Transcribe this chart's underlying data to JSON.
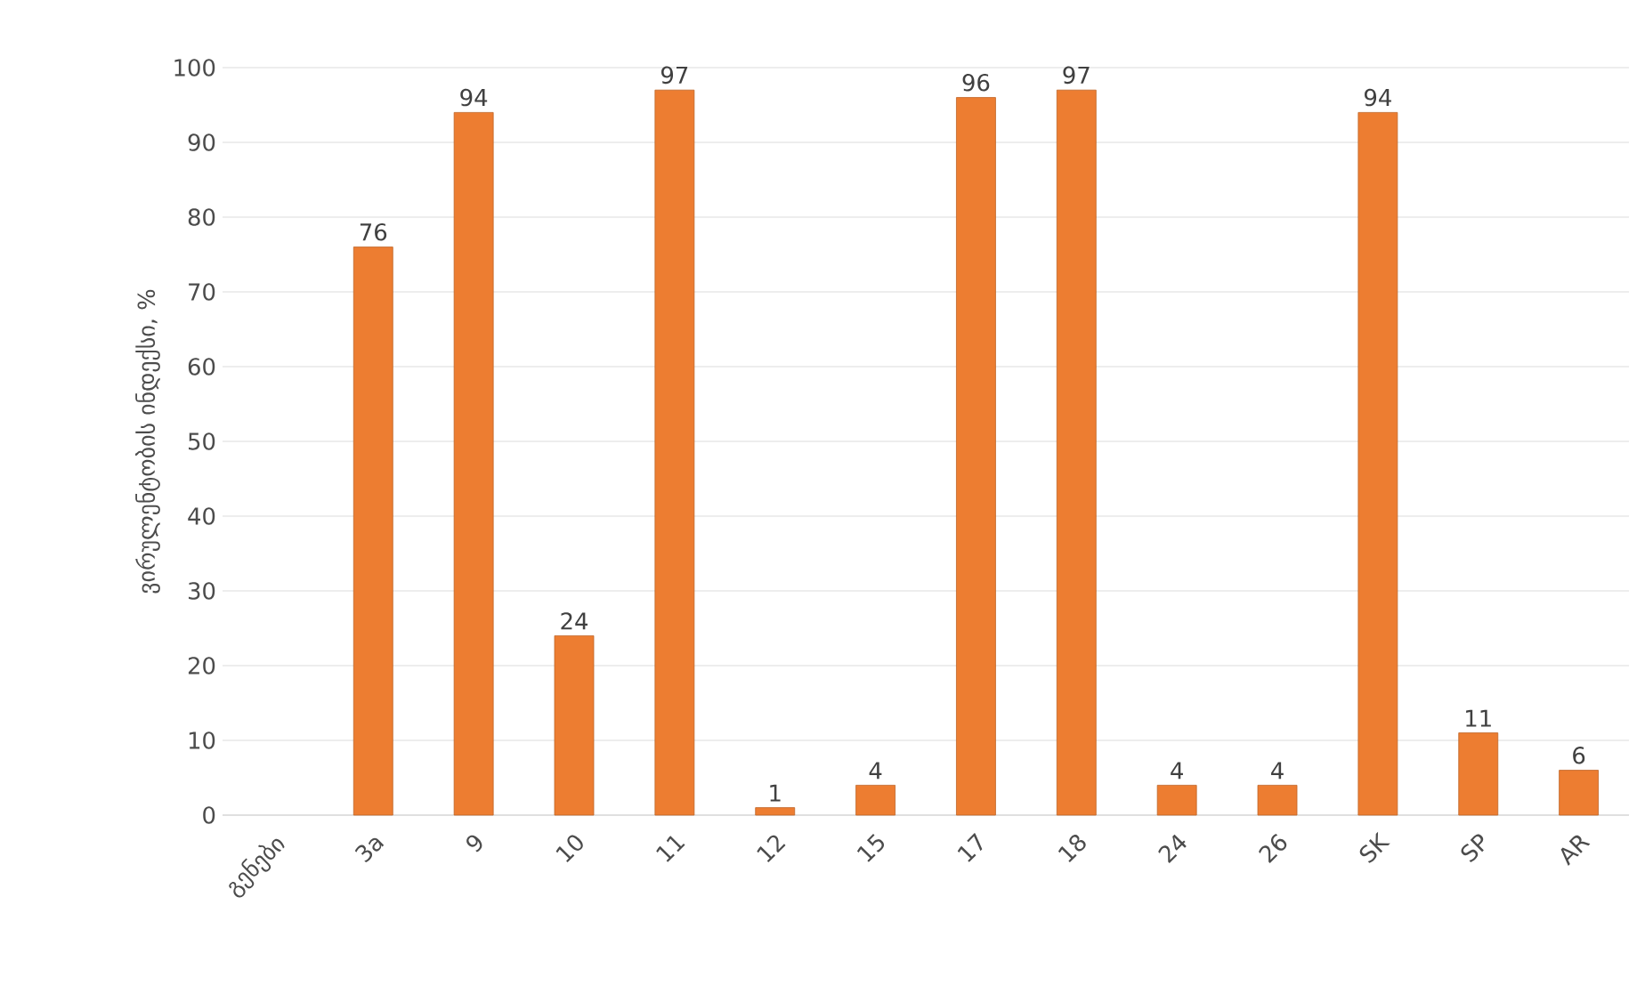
{
  "chart_data": {
    "type": "bar",
    "ylabel": "ვირულენტობის ინდექსი, %",
    "categories": [
      "გენები",
      "3a",
      "9",
      "10",
      "11",
      "12",
      "15",
      "17",
      "18",
      "24",
      "26",
      "SK",
      "SP",
      "AR"
    ],
    "values": [
      null,
      76,
      94,
      24,
      97,
      1,
      4,
      96,
      97,
      4,
      4,
      94,
      11,
      6
    ],
    "color": "#ed7d31",
    "data_labels": true,
    "grid": "y",
    "ylim": [
      0,
      100
    ],
    "yticks": [
      0,
      10,
      20,
      30,
      40,
      50,
      60,
      70,
      80,
      90,
      100
    ]
  }
}
